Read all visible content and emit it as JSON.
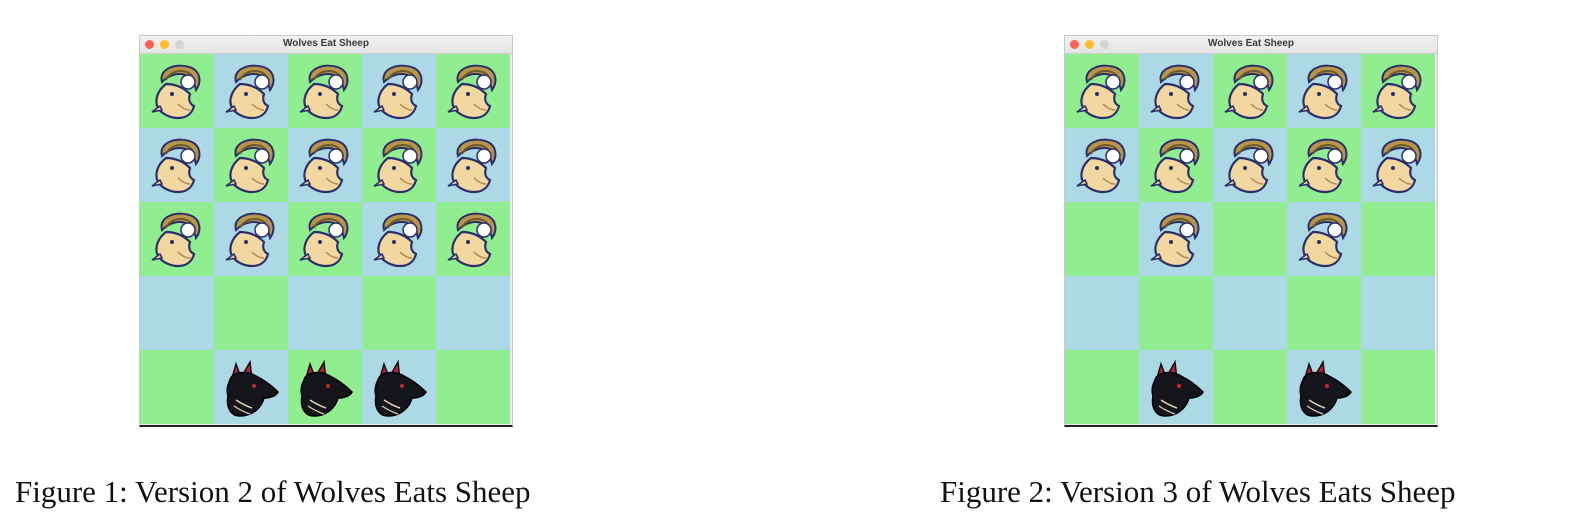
{
  "colors": {
    "green": "#90ee90",
    "blue": "#add8e6"
  },
  "figures": [
    {
      "window_title": "Wolves Eat Sheep",
      "caption": "Figure 1:  Version 2 of Wolves Eats Sheep",
      "board": [
        [
          "sheep",
          "sheep",
          "sheep",
          "sheep",
          "sheep"
        ],
        [
          "sheep",
          "sheep",
          "sheep",
          "sheep",
          "sheep"
        ],
        [
          "sheep",
          "sheep",
          "sheep",
          "sheep",
          "sheep"
        ],
        [
          "empty",
          "empty",
          "empty",
          "empty",
          "empty"
        ],
        [
          "empty",
          "wolf",
          "wolf",
          "wolf",
          "empty"
        ]
      ]
    },
    {
      "window_title": "Wolves Eat Sheep",
      "caption": "Figure 2:  Version 3 of Wolves Eats Sheep",
      "board": [
        [
          "sheep",
          "sheep",
          "sheep",
          "sheep",
          "sheep"
        ],
        [
          "sheep",
          "sheep",
          "sheep",
          "sheep",
          "sheep"
        ],
        [
          "empty",
          "sheep",
          "empty",
          "sheep",
          "empty"
        ],
        [
          "empty",
          "empty",
          "empty",
          "empty",
          "empty"
        ],
        [
          "empty",
          "wolf",
          "empty",
          "wolf",
          "empty"
        ]
      ]
    }
  ]
}
